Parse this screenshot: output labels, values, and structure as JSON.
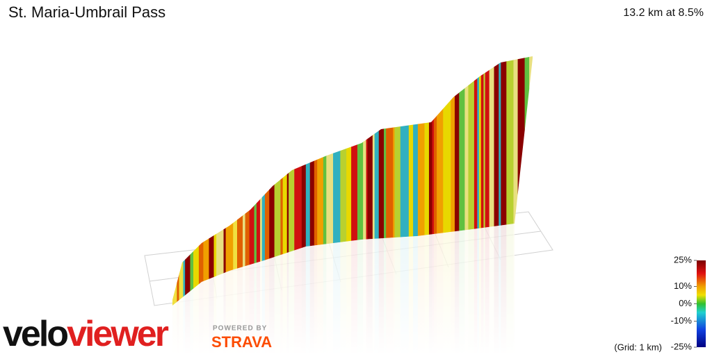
{
  "header": {
    "title": "St. Maria-Umbrail Pass",
    "summary": "13.2 km at 8.5%"
  },
  "legend": {
    "range": [
      -25,
      25
    ],
    "ticks": [
      {
        "value": 25,
        "label": "25%"
      },
      {
        "value": 10,
        "label": "10%"
      },
      {
        "value": 0,
        "label": "0%"
      },
      {
        "value": -10,
        "label": "-10%"
      },
      {
        "value": -25,
        "label": "-25%"
      }
    ],
    "grid_note": "(Grid: 1 km)"
  },
  "branding": {
    "logo_a": "velo",
    "logo_b": "viewer",
    "powered": "POWERED BY",
    "strava": "STRAVA"
  }
}
